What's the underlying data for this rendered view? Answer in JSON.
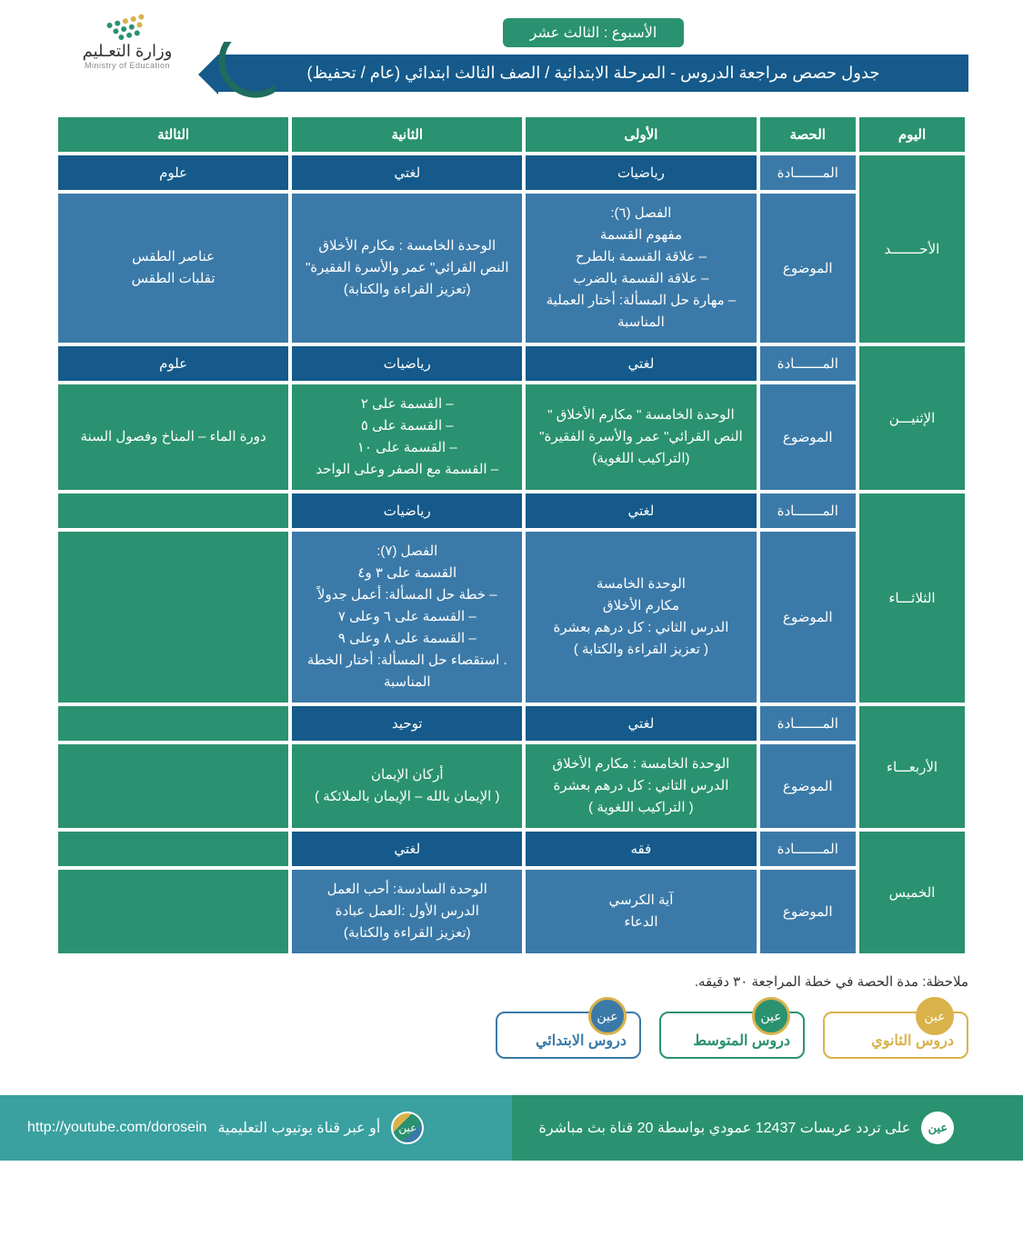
{
  "colors": {
    "green": "#2a9270",
    "blue_dark": "#155a8a",
    "blue_mid": "#3b7aa8",
    "gold": "#d9b24a",
    "footer_teal": "#3aa0a0",
    "footer_green": "#2a9270"
  },
  "logo": {
    "text_ar": "وزارة التعـليم",
    "text_en": "Ministry of Education"
  },
  "week_badge": "الأسبوع : الثالث عشر",
  "title_bar": "جدول حصص مراجعة الدروس - المرحلة الابتدائية / الصف الثالث ابتدائي (عام / تحفيظ)",
  "headers": {
    "day": "اليوم",
    "period": "الحصة",
    "subject_label": "المـــــــادة",
    "topic_label": "الموضوع",
    "p1": "الأولى",
    "p2": "الثانية",
    "p3": "الثالثة"
  },
  "days": [
    {
      "name": "الأحـــــــد",
      "alt": false,
      "subjects": [
        "رياضيات",
        "لغتي",
        "علوم"
      ],
      "topics": [
        "الفصل (٦):\nمفهوم القسمة\n– علاقة القسمة بالطرح\n– علاقة القسمة بالضرب\n– مهارة حل المسألة: أختار العملية المناسبة",
        "الوحدة الخامسة : مكارم الأخلاق\nالنص القرائي\" عمر والأسرة الفقيرة\"\n(تعزيز القراءة والكتابة)",
        "عناصر الطقس\nتقلبات الطقس"
      ]
    },
    {
      "name": "الإثنيـــن",
      "alt": true,
      "subjects": [
        "لغتي",
        "رياضيات",
        "علوم"
      ],
      "topics": [
        "الوحدة الخامسة \" مكارم الأخلاق \"\nالنص القرائي\" عمر والأسرة الفقيرة\"\n(التراكيب اللغوية)",
        "– القسمة على ٢\n– القسمة على ٥\n– القسمة على ١٠\n– القسمة مع الصفر وعلى الواحد",
        "دورة الماء – المناخ وفصول السنة"
      ]
    },
    {
      "name": "الثلاثـــاء",
      "alt": false,
      "subjects": [
        "لغتي",
        "رياضيات",
        ""
      ],
      "topics": [
        "الوحدة الخامسة\nمكارم الأخلاق\nالدرس الثاني : كل درهم بعشرة\n( تعزيز القراءة والكتابة )",
        "الفصل (٧):\nالقسمة على ٣ و٤\n– خطة حل المسألة: أعمل جدولاً\n– القسمة على ٦ وعلى ٧\n– القسمة على ٨ وعلى ٩\n. استقصاء حل المسألة: أختار الخطة المناسبة",
        ""
      ]
    },
    {
      "name": "الأربعـــاء",
      "alt": true,
      "subjects": [
        "لغتي",
        "توحيد",
        ""
      ],
      "topics": [
        "الوحدة الخامسة : مكارم الأخلاق\nالدرس الثاني : كل درهم بعشرة\n( التراكيب اللغوية )",
        "أركان الإيمان\n( الإيمان بالله – الإيمان بالملائكة )",
        ""
      ]
    },
    {
      "name": "الخميس",
      "alt": false,
      "subjects": [
        "فقه",
        "لغتي",
        ""
      ],
      "topics": [
        "آية الكرسي\nالدعاء",
        "الوحدة السادسة: أحب العمل\nالدرس الأول :العمل عبادة\n(تعزيز القراءة والكتابة)",
        ""
      ]
    }
  ],
  "note": "ملاحظة: مدة الحصة في خطة المراجعة ٣٠ دقيقه.",
  "levels": [
    {
      "label": "دروس الابتدائي",
      "color": "#3b7aa8"
    },
    {
      "label": "دروس المتوسط",
      "color": "#2a9270"
    },
    {
      "label": "دروس الثانوي",
      "color": "#d9b24a"
    }
  ],
  "ain_text": "عين",
  "footer": {
    "freq": "على تردد عربسات 12437 عمودي بواسطة 20 قناة بث مباشرة",
    "yt_prefix": "أو عبر قناة يوتيوب التعليمية",
    "yt_url": "http://youtube.com/dorosein"
  }
}
